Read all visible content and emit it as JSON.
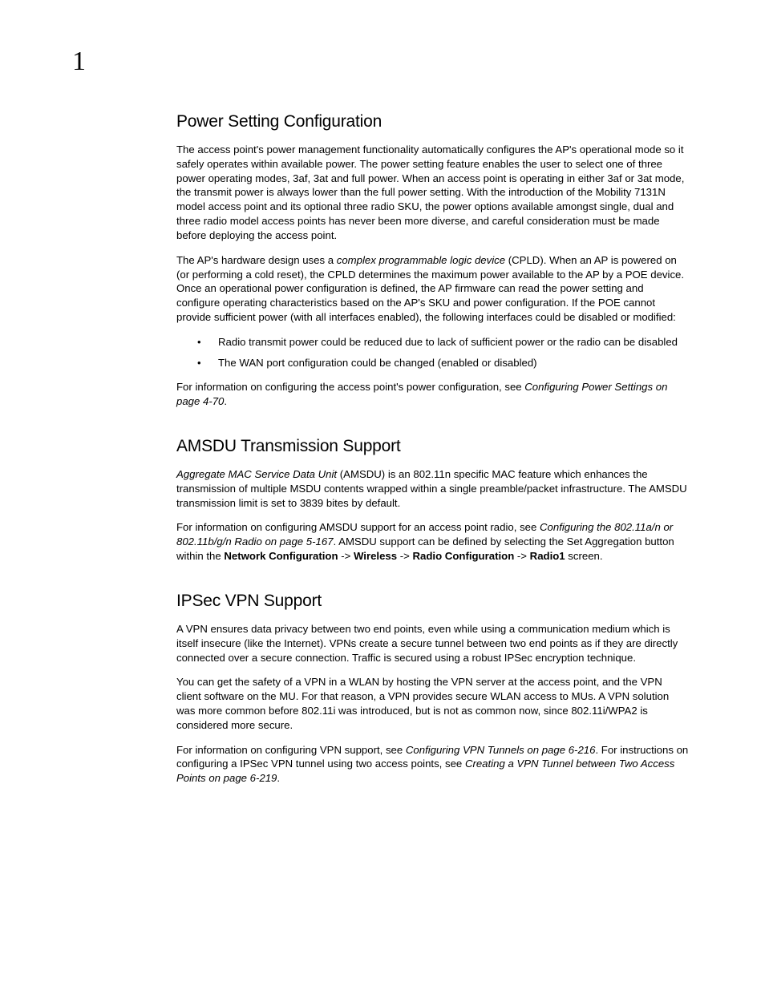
{
  "page": {
    "chapter_number": "1",
    "background_color": "#ffffff",
    "text_color": "#000000",
    "body_fontsize_pt": 10,
    "heading_fontsize_pt": 16,
    "heading_font": "Arial",
    "body_font": "Arial",
    "chapter_font": "Georgia"
  },
  "sections": {
    "power": {
      "heading": "Power Setting Configuration",
      "para1": "The access point's power management functionality automatically configures the AP's operational mode so it safely operates within available power. The power setting feature enables the user to select one of three power operating modes, 3af, 3at and full power. When an access point is operating in either 3af or 3at mode, the transmit power is always lower than the full power setting. With the introduction of the Mobility 7131N model access point and its optional three radio SKU, the power options available amongst single, dual and three radio model access points has never been more diverse, and careful consideration must be made before deploying the access point.",
      "para2_pre": "The AP's hardware design uses a ",
      "para2_ital": "complex programmable logic device",
      "para2_post": " (CPLD). When an AP is powered on (or performing a cold reset), the CPLD determines the maximum power available to the AP by a POE device. Once an operational power configuration is defined, the AP firmware can read the power setting and configure operating characteristics based on the AP's SKU and power configuration. If the POE cannot provide sufficient power (with all interfaces enabled), the following interfaces could be disabled or modified:",
      "bullet1": "Radio transmit power could be reduced due to lack of sufficient power or the radio can be disabled",
      "bullet2": "The WAN port configuration could be changed (enabled or disabled)",
      "para3_pre": "For information on configuring the access point's power configuration, see ",
      "para3_ital": "Configuring Power Settings on page 4-70",
      "para3_post": "."
    },
    "amsdu": {
      "heading": "AMSDU Transmission Support",
      "para1_ital": "Aggregate MAC Service Data Unit",
      "para1_post": " (AMSDU) is an 802.11n specific MAC feature which enhances the transmission of multiple MSDU contents wrapped within a single preamble/packet infrastructure. The AMSDU transmission limit is set to 3839 bites by default.",
      "para2_pre": "For information on configuring AMSDU support for an access point radio, see ",
      "para2_ital": "Configuring the 802.11a/n or 802.11b/g/n Radio on page 5-167",
      "para2_mid": ". AMSDU support can be defined by selecting the Set Aggregation button within the ",
      "para2_b1": "Network Configuration",
      "para2_s1": " -> ",
      "para2_b2": "Wireless",
      "para2_s2": " -> ",
      "para2_b3": "Radio Configuration",
      "para2_s3": " -> ",
      "para2_b4": "Radio1",
      "para2_post": " screen."
    },
    "ipsec": {
      "heading": "IPSec VPN Support",
      "para1": "A VPN ensures data privacy between two end points, even while using a communication medium which is itself insecure (like the Internet). VPNs create a secure tunnel between two end points as if they are directly connected over a secure connection. Traffic is secured using a robust IPSec encryption technique.",
      "para2": "You can get the safety of a VPN in a WLAN by hosting the VPN server at the access point, and the VPN client software on the MU. For that reason, a VPN provides secure WLAN access to MUs. A VPN solution was more common before 802.11i was introduced, but is not as common now, since 802.11i/WPA2 is considered more secure.",
      "para3_pre": "For information on configuring VPN support, see ",
      "para3_ital1": "Configuring VPN Tunnels on page 6-216",
      "para3_mid": ". For instructions on configuring a IPSec VPN tunnel using two access points, see ",
      "para3_ital2": "Creating a VPN Tunnel between Two Access Points on page 6-219",
      "para3_post": "."
    }
  }
}
